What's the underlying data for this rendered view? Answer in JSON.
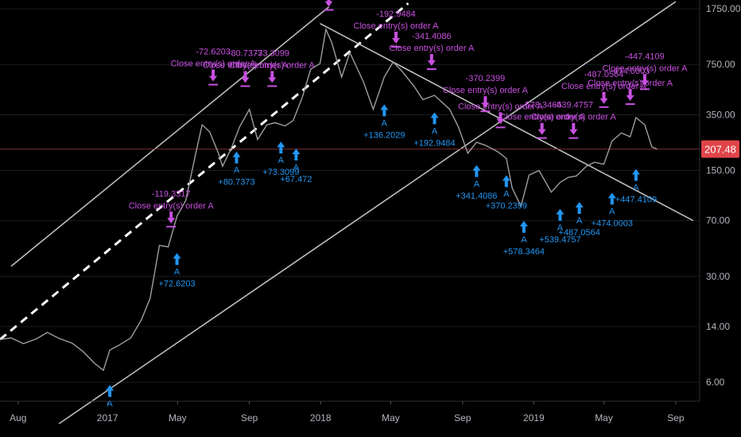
{
  "chart_data": {
    "type": "line",
    "y_scale": "log",
    "ylim": [
      4.5,
      2000
    ],
    "price_axis_ticks": [
      "1750.00",
      "750.00",
      "350.00",
      "150.00",
      "70.00",
      "30.00",
      "14.00",
      "6.00"
    ],
    "time_axis_labels": [
      "Aug",
      "2017",
      "May",
      "Sep",
      "2018",
      "May",
      "Sep",
      "2019",
      "May",
      "Sep"
    ],
    "last_price": "207.48",
    "colors": {
      "background": "#000000",
      "price_line": "#9e9e9e",
      "channel_lines": "#bdbdbd",
      "midline": "#ffffff",
      "sell_signal": "#c850e0",
      "buy_signal": "#2196f3",
      "last_price_badge": "#e0454a"
    },
    "series": [
      {
        "values": [
          [
            "2016-07-01",
            11.5
          ],
          [
            "2016-07-20",
            11.8
          ],
          [
            "2016-08-10",
            10.8
          ],
          [
            "2016-09-01",
            11.6
          ],
          [
            "2016-09-20",
            12.8
          ],
          [
            "2016-10-10",
            11.7
          ],
          [
            "2016-11-01",
            10.9
          ],
          [
            "2016-11-20",
            9.6
          ],
          [
            "2016-12-10",
            8.0
          ],
          [
            "2016-12-25",
            7.2
          ],
          [
            "2017-01-05",
            9.8
          ],
          [
            "2017-01-20",
            10.5
          ],
          [
            "2017-02-10",
            11.8
          ],
          [
            "2017-02-28",
            15.5
          ],
          [
            "2017-03-15",
            21.5
          ],
          [
            "2017-03-31",
            48
          ],
          [
            "2017-04-15",
            47
          ],
          [
            "2017-04-30",
            75
          ],
          [
            "2017-05-15",
            95
          ],
          [
            "2017-05-31",
            185
          ],
          [
            "2017-06-12",
            300
          ],
          [
            "2017-06-25",
            270
          ],
          [
            "2017-07-10",
            195
          ],
          [
            "2017-07-17",
            160
          ],
          [
            "2017-08-01",
            210
          ],
          [
            "2017-08-15",
            290
          ],
          [
            "2017-09-01",
            380
          ],
          [
            "2017-09-15",
            240
          ],
          [
            "2017-10-01",
            300
          ],
          [
            "2017-10-15",
            310
          ],
          [
            "2017-11-01",
            295
          ],
          [
            "2017-11-15",
            320
          ],
          [
            "2017-12-01",
            460
          ],
          [
            "2017-12-15",
            700
          ],
          [
            "2017-12-31",
            760
          ],
          [
            "2018-01-10",
            1280
          ],
          [
            "2018-01-20",
            1050
          ],
          [
            "2018-02-06",
            620
          ],
          [
            "2018-02-20",
            900
          ],
          [
            "2018-03-15",
            580
          ],
          [
            "2018-04-01",
            380
          ],
          [
            "2018-04-20",
            620
          ],
          [
            "2018-05-05",
            780
          ],
          [
            "2018-05-20",
            680
          ],
          [
            "2018-06-10",
            540
          ],
          [
            "2018-06-25",
            440
          ],
          [
            "2018-07-15",
            470
          ],
          [
            "2018-08-10",
            380
          ],
          [
            "2018-08-25",
            290
          ],
          [
            "2018-09-10",
            195
          ],
          [
            "2018-09-25",
            230
          ],
          [
            "2018-10-10",
            220
          ],
          [
            "2018-10-31",
            200
          ],
          [
            "2018-11-15",
            180
          ],
          [
            "2018-11-25",
            115
          ],
          [
            "2018-12-10",
            87
          ],
          [
            "2018-12-24",
            140
          ],
          [
            "2019-01-10",
            150
          ],
          [
            "2019-01-31",
            108
          ],
          [
            "2019-02-15",
            125
          ],
          [
            "2019-03-01",
            135
          ],
          [
            "2019-03-15",
            138
          ],
          [
            "2019-04-01",
            160
          ],
          [
            "2019-04-15",
            170
          ],
          [
            "2019-05-01",
            165
          ],
          [
            "2019-05-15",
            235
          ],
          [
            "2019-05-31",
            265
          ],
          [
            "2019-06-15",
            250
          ],
          [
            "2019-06-25",
            335
          ],
          [
            "2019-07-10",
            300
          ],
          [
            "2019-07-22",
            215
          ],
          [
            "2019-07-31",
            207.48
          ]
        ]
      }
    ],
    "sell_signals": [
      {
        "date": "2017-04-20",
        "price": 52,
        "label": "Close entry(s) order A",
        "pnl": "-119.3317"
      },
      {
        "date": "2017-07-01",
        "price": 450,
        "label": "Close entry(s) order A",
        "pnl": "-72.6203"
      },
      {
        "date": "2017-08-25",
        "price": 440,
        "label": "Close entry(s) order A",
        "pnl": "-80.7373"
      },
      {
        "date": "2017-10-10",
        "price": 440,
        "label": "Close entry(s) order A",
        "pnl": "-73.3099"
      },
      {
        "date": "2018-01-15",
        "price": 1400,
        "label": "Close entry(s) order A",
        "pnl": ""
      },
      {
        "date": "2018-05-10",
        "price": 800,
        "label": "Close entry(s) order A",
        "pnl": "-192.9484"
      },
      {
        "date": "2018-07-10",
        "price": 570,
        "label": "Close entry(s) order A",
        "pnl": "-341.4086"
      },
      {
        "date": "2018-10-10",
        "price": 300,
        "label": "Close entry(s) order A",
        "pnl": "-370.2399"
      },
      {
        "date": "2018-11-05",
        "price": 235,
        "label": "Close entry(s) order A",
        "pnl": ""
      },
      {
        "date": "2019-01-15",
        "price": 200,
        "label": "Close entry(s) order A",
        "pnl": "-578.3464"
      },
      {
        "date": "2019-03-10",
        "price": 200,
        "label": "Close entry(s) order A",
        "pnl": "-539.4757"
      },
      {
        "date": "2019-05-01",
        "price": 320,
        "label": "Close entry(s) order A",
        "pnl": "-487.0564"
      },
      {
        "date": "2019-06-15",
        "price": 335,
        "label": "Close entry(s) order A",
        "pnl": "-474.0003"
      },
      {
        "date": "2019-07-10",
        "price": 420,
        "label": "Close entry(s) order A",
        "pnl": "-447.4109"
      }
    ],
    "buy_signals": [
      {
        "date": "2017-01-05",
        "price": 6.2,
        "label": "A",
        "pnl": ""
      },
      {
        "date": "2017-04-30",
        "price": 46,
        "label": "A",
        "pnl": "+72.6203"
      },
      {
        "date": "2017-08-10",
        "price": 215,
        "label": "A",
        "pnl": "+80.7373"
      },
      {
        "date": "2017-10-25",
        "price": 250,
        "label": "A",
        "pnl": "+73.3099"
      },
      {
        "date": "2017-11-20",
        "price": 225,
        "label": "A",
        "pnl": "+67.472"
      },
      {
        "date": "2018-04-20",
        "price": 440,
        "label": "A",
        "pnl": "+136.2029"
      },
      {
        "date": "2018-07-15",
        "price": 390,
        "label": "A",
        "pnl": "+192.9484"
      },
      {
        "date": "2018-09-25",
        "price": 175,
        "label": "A",
        "pnl": "+341.4086"
      },
      {
        "date": "2018-11-15",
        "price": 150,
        "label": "A",
        "pnl": "+370.2399"
      },
      {
        "date": "2018-12-15",
        "price": 75,
        "label": "A",
        "pnl": "+578.3464"
      },
      {
        "date": "2019-02-15",
        "price": 90,
        "label": "A",
        "pnl": "+539.4757"
      },
      {
        "date": "2019-03-20",
        "price": 100,
        "label": "A",
        "pnl": "+487.0564"
      },
      {
        "date": "2019-05-15",
        "price": 115,
        "label": "A",
        "pnl": "+474.0003"
      },
      {
        "date": "2019-06-25",
        "price": 165,
        "label": "A",
        "pnl": "+447.4109"
      }
    ],
    "trend_lines": [
      {
        "style": "solid",
        "from": [
          "2016-07-20",
          35
        ],
        "to": [
          "2018-01-15",
          1800
        ]
      },
      {
        "style": "solid",
        "from": [
          "2016-10-10",
          3.2
        ],
        "to": [
          "2019-09-01",
          1950
        ]
      },
      {
        "style": "dashed",
        "from": [
          "2016-07-01",
          11.5
        ],
        "to": [
          "2018-05-31",
          1900
        ]
      },
      {
        "style": "solid",
        "from": [
          "2017-12-31",
          1400
        ],
        "to": [
          "2019-10-01",
          70
        ]
      }
    ]
  }
}
